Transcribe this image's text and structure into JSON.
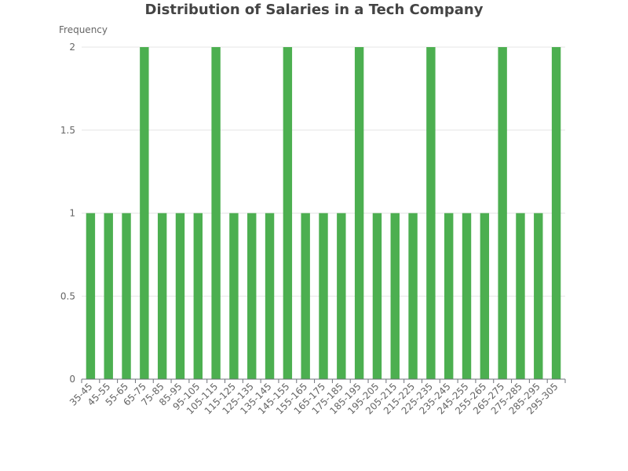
{
  "chart_data": {
    "type": "bar",
    "title": "Distribution of Salaries in a Tech Company",
    "xlabel": "",
    "ylabel": "Frequency",
    "ylim": [
      0,
      2
    ],
    "y_ticks": [
      "0",
      "0.5",
      "1",
      "1.5",
      "2"
    ],
    "grid": true,
    "bar_color": "#4caf50",
    "categories": [
      "35-45",
      "45-55",
      "55-65",
      "65-75",
      "75-85",
      "85-95",
      "95-105",
      "105-115",
      "115-125",
      "125-135",
      "135-145",
      "145-155",
      "155-165",
      "165-175",
      "175-185",
      "185-195",
      "195-205",
      "205-215",
      "215-225",
      "225-235",
      "235-245",
      "245-255",
      "255-265",
      "265-275",
      "275-285",
      "285-295",
      "295-305"
    ],
    "values": [
      1,
      1,
      1,
      2,
      1,
      1,
      1,
      2,
      1,
      1,
      1,
      2,
      1,
      1,
      1,
      2,
      1,
      1,
      1,
      2,
      1,
      1,
      1,
      2,
      1,
      1,
      2
    ]
  }
}
